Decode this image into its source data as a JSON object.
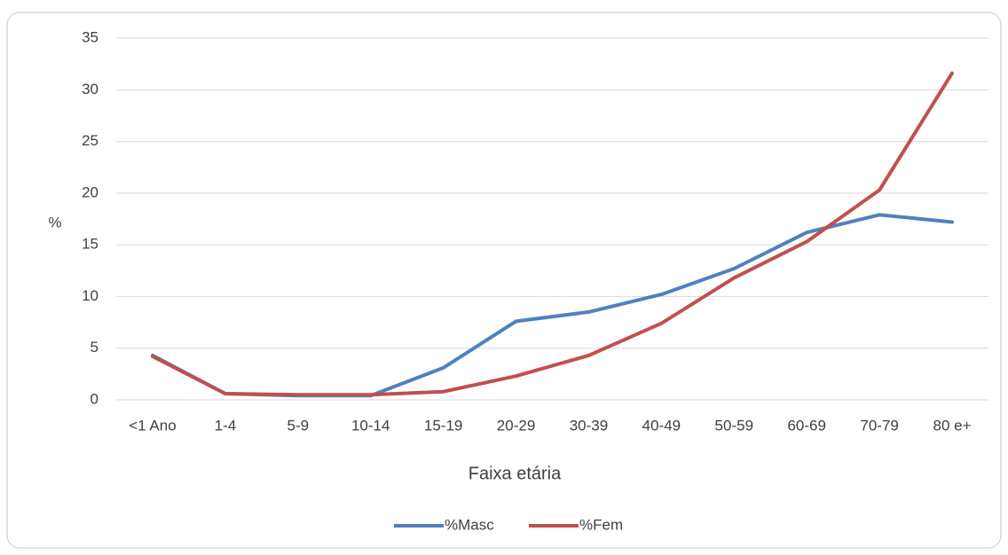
{
  "chart_data": {
    "type": "line",
    "x_label": "Faixa etária",
    "y_label": "%",
    "categories": [
      "<1 Ano",
      "1-4",
      "5-9",
      "10-14",
      "15-19",
      "20-29",
      "30-39",
      "40-49",
      "50-59",
      "60-69",
      "70-79",
      "80 e+"
    ],
    "series": [
      {
        "name": "%Masc",
        "color": "#4f81bd",
        "values": [
          4.3,
          0.6,
          0.4,
          0.4,
          3.1,
          7.6,
          8.5,
          10.2,
          12.7,
          16.2,
          17.9,
          17.2
        ]
      },
      {
        "name": "%Fem",
        "color": "#c0504d",
        "values": [
          4.2,
          0.6,
          0.5,
          0.5,
          0.8,
          2.3,
          4.3,
          7.4,
          11.8,
          15.3,
          20.3,
          31.6
        ]
      }
    ],
    "ylim": [
      0,
      35
    ],
    "yticks": [
      0,
      5,
      10,
      15,
      20,
      25,
      30,
      35
    ],
    "grid": true,
    "legend": "bottom"
  }
}
